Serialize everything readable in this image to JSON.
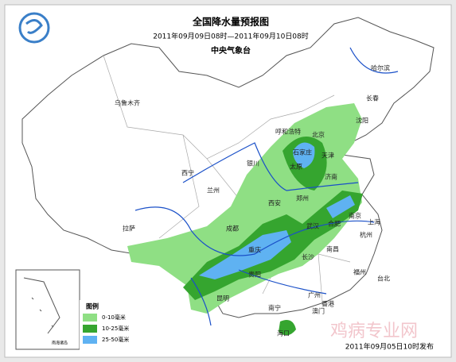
{
  "header": {
    "title": "全国降水量预报图",
    "period": "2011年09月09日08时—2011年09月10日08时",
    "issuer": "中央气象台"
  },
  "cities": [
    "哈尔滨",
    "长春",
    "沈阳",
    "乌鲁木齐",
    "呼和浩特",
    "北京",
    "天津",
    "石家庄",
    "太原",
    "银川",
    "西宁",
    "兰州",
    "济南",
    "郑州",
    "西安",
    "合肥",
    "南京",
    "上海",
    "武汉",
    "杭州",
    "成都",
    "重庆",
    "拉萨",
    "长沙",
    "南昌",
    "贵阳",
    "福州",
    "台北",
    "昆明",
    "广州",
    "香港",
    "澳门",
    "南宁",
    "海口"
  ],
  "legend": {
    "title": "图例",
    "items": [
      {
        "label": "0-10毫米",
        "color": "#8fdf84"
      },
      {
        "label": "10-25毫米",
        "color": "#35a52f"
      },
      {
        "label": "25-50毫米",
        "color": "#5fb2f2"
      }
    ]
  },
  "inset_label": "南海诸岛",
  "footer": "2011年09月05日10时发布",
  "watermark": "鸡病专业网"
}
